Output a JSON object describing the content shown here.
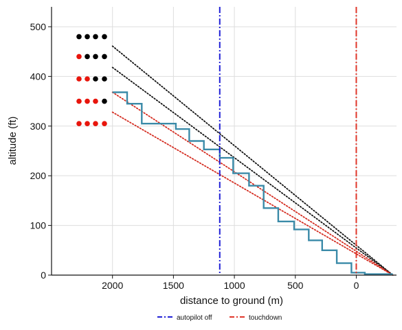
{
  "chart_data": {
    "type": "line",
    "title": "",
    "xlabel": "distance to ground (m)",
    "ylabel": "altitude (ft)",
    "xlim": [
      2500,
      -330
    ],
    "ylim": [
      0,
      540
    ],
    "x_reversed": true,
    "x_ticks": [
      2000,
      1500,
      1000,
      500,
      0
    ],
    "x_tick_labels": [
      "2000",
      "1500",
      "1000",
      "500",
      "0"
    ],
    "y_ticks": [
      0,
      100,
      200,
      300,
      400,
      500
    ],
    "y_tick_labels": [
      "0",
      "100",
      "200",
      "300",
      "400",
      "500"
    ],
    "grid": true,
    "legend_position": "bottom",
    "colors": {
      "profile": "#3a8aa8",
      "black_guide": "#111111",
      "red_guide": "#d42a1e",
      "autopilot": "#1f1fd6",
      "touchdown": "#e0362a",
      "grid": "#dddddd",
      "dot_red": "#e8150c",
      "dot_black": "#000000"
    },
    "series": [
      {
        "kind": "step-profile",
        "color": "#3a8aa8",
        "points": [
          [
            2000,
            368
          ],
          [
            1880,
            368
          ],
          [
            1880,
            345
          ],
          [
            1760,
            345
          ],
          [
            1760,
            305
          ],
          [
            1480,
            305
          ],
          [
            1480,
            294
          ],
          [
            1370,
            294
          ],
          [
            1370,
            270
          ],
          [
            1250,
            270
          ],
          [
            1250,
            253
          ],
          [
            1120,
            253
          ],
          [
            1120,
            236
          ],
          [
            1010,
            236
          ],
          [
            1010,
            205
          ],
          [
            880,
            205
          ],
          [
            880,
            180
          ],
          [
            760,
            180
          ],
          [
            760,
            135
          ],
          [
            640,
            135
          ],
          [
            640,
            108
          ],
          [
            510,
            108
          ],
          [
            510,
            92
          ],
          [
            390,
            92
          ],
          [
            390,
            70
          ],
          [
            280,
            70
          ],
          [
            280,
            50
          ],
          [
            160,
            50
          ],
          [
            160,
            24
          ],
          [
            40,
            24
          ],
          [
            40,
            5
          ],
          [
            -70,
            5
          ],
          [
            -70,
            2
          ],
          [
            -300,
            2
          ]
        ]
      },
      {
        "kind": "guide",
        "color": "#111111",
        "points": [
          [
            2000,
            461
          ],
          [
            -300,
            0
          ]
        ]
      },
      {
        "kind": "guide",
        "color": "#111111",
        "points": [
          [
            2000,
            418
          ],
          [
            -300,
            0
          ]
        ]
      },
      {
        "kind": "guide",
        "color": "#d42a1e",
        "points": [
          [
            2000,
            368
          ],
          [
            -300,
            0
          ]
        ]
      },
      {
        "kind": "guide",
        "color": "#d42a1e",
        "points": [
          [
            2000,
            328
          ],
          [
            -300,
            0
          ]
        ]
      }
    ],
    "vlines": [
      {
        "name": "autopilot off",
        "x": 1120,
        "color": "#1f1fd6"
      },
      {
        "name": "touchdown",
        "x": 0,
        "color": "#e0362a"
      }
    ],
    "indicator_rows": [
      {
        "y": 480,
        "dots": [
          "black",
          "black",
          "black",
          "black"
        ]
      },
      {
        "y": 440,
        "dots": [
          "red",
          "black",
          "black",
          "black"
        ]
      },
      {
        "y": 395,
        "dots": [
          "red",
          "red",
          "black",
          "black"
        ]
      },
      {
        "y": 350,
        "dots": [
          "red",
          "red",
          "red",
          "black"
        ]
      },
      {
        "y": 305,
        "dots": [
          "red",
          "red",
          "red",
          "red"
        ]
      }
    ],
    "legend": [
      {
        "label": "autopilot off",
        "color": "#1f1fd6"
      },
      {
        "label": "touchdown",
        "color": "#e0362a"
      }
    ]
  }
}
